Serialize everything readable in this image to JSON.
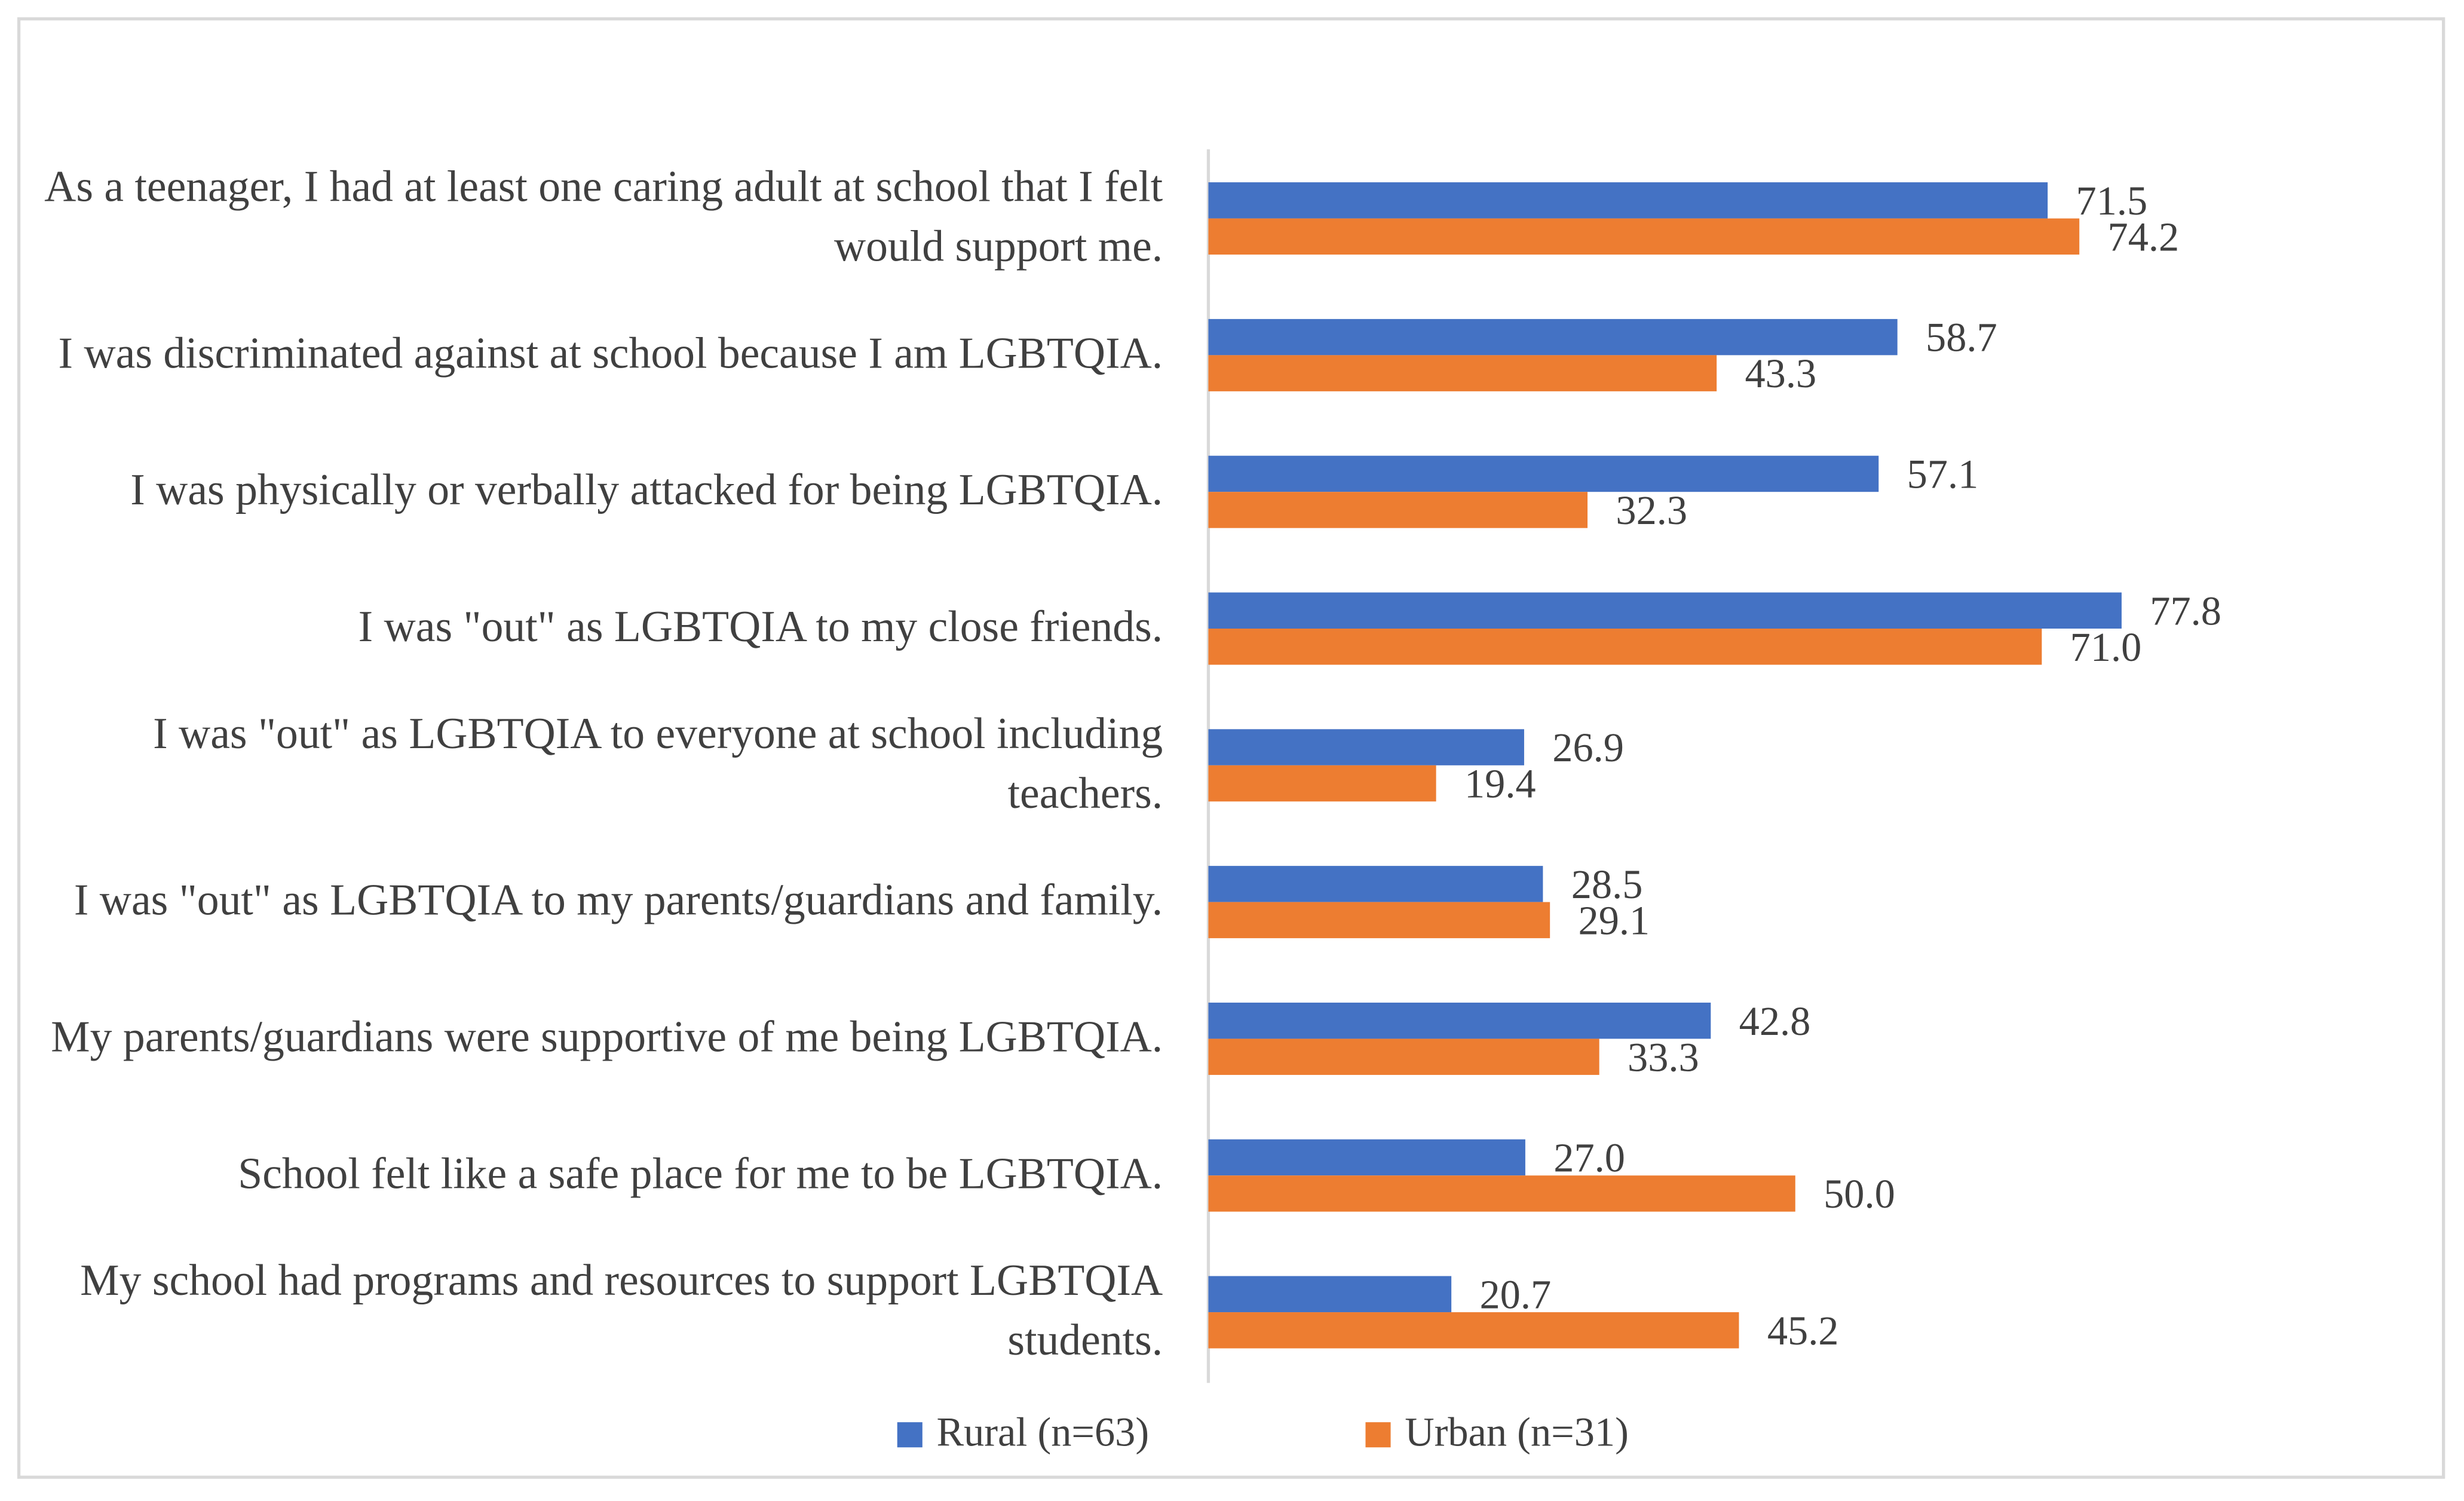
{
  "chart_data": {
    "type": "bar",
    "orientation": "horizontal",
    "categories": [
      "As a teenager, I had at least one caring adult at school that I felt would support me.",
      "I was discriminated against at school because I am LGBTQIA.",
      "I was physically or verbally attacked for being LGBTQIA.",
      "I was \"out\" as LGBTQIA to my close friends.",
      "I was \"out\" as LGBTQIA to everyone at school including teachers.",
      "I was \"out\" as LGBTQIA to my parents/guardians and family.",
      "My parents/guardians were supportive of me being LGBTQIA.",
      "School felt like a safe place for me to be LGBTQIA.",
      "My school had programs and resources to support LGBTQIA students."
    ],
    "series": [
      {
        "name": "Rural (n=63)",
        "color": "#4472c4",
        "values": [
          71.5,
          58.7,
          57.1,
          77.8,
          26.9,
          28.5,
          42.8,
          27.0,
          20.7
        ],
        "value_labels": [
          "71.5",
          "58.7",
          "57.1",
          "77.8",
          "26.9",
          "28.5",
          "42.8",
          "27.0",
          "20.7"
        ]
      },
      {
        "name": "Urban (n=31)",
        "color": "#ed7d31",
        "values": [
          74.2,
          43.3,
          32.3,
          71.0,
          19.4,
          29.1,
          33.3,
          50.0,
          45.2
        ],
        "value_labels": [
          "74.2",
          "43.3",
          "32.3",
          "71.0",
          "19.4",
          "29.1",
          "33.3",
          "50.0",
          "45.2"
        ]
      }
    ],
    "xlim": [
      0,
      100
    ],
    "legend": "bottom"
  }
}
